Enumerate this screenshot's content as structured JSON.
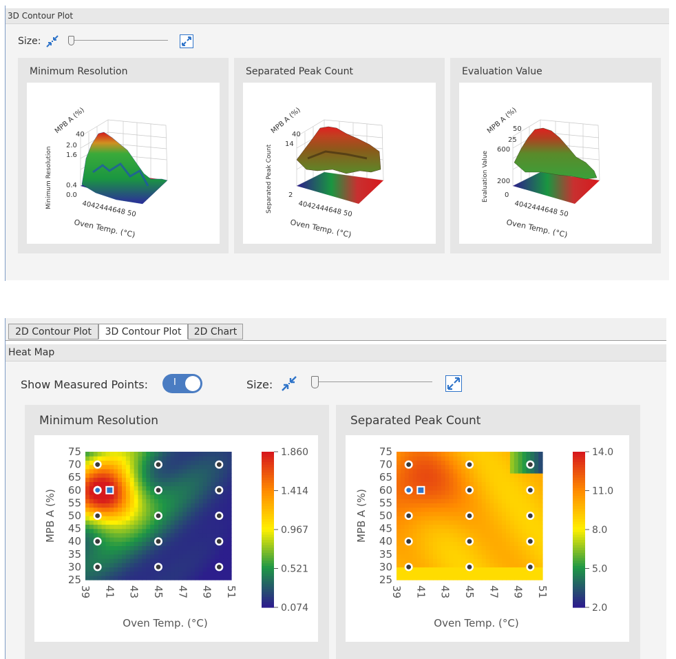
{
  "top": {
    "panel_title": "3D Contour Plot",
    "size_label": "Size:",
    "size_slider_value": 0,
    "cards": [
      {
        "title": "Minimum Resolution",
        "zlabel": "Minimum Resolution",
        "ylabel": "MPB A (%)",
        "xlabel": "Oven Temp. (°C)",
        "y_tick": "40",
        "z_ticks": [
          "2.0",
          "1.6",
          "0.4",
          "0.0"
        ],
        "x_ticks": "4042444648 50"
      },
      {
        "title": "Separated Peak Count",
        "zlabel": "Separated Peak Count",
        "ylabel": "MPB A (%)",
        "xlabel": "Oven Temp. (°C)",
        "y_tick": "40",
        "z_ticks": [
          "14",
          "2"
        ],
        "x_ticks": "4042444648 50"
      },
      {
        "title": "Evaluation Value",
        "zlabel": "Evaluation Value",
        "ylabel": "MPB A (%)",
        "xlabel": "Oven Temp. (°C)",
        "y_ticks": [
          "50",
          "25"
        ],
        "z_ticks": [
          "600",
          "200",
          "0"
        ],
        "x_ticks": "4042444648 50"
      }
    ]
  },
  "tabs": [
    {
      "label": "2D Contour Plot",
      "active": false
    },
    {
      "label": "3D Contour Plot",
      "active": true
    },
    {
      "label": "2D Chart",
      "active": false
    }
  ],
  "bottom": {
    "panel_title": "Heat Map",
    "show_points_label": "Show Measured Points:",
    "show_points_toggle": "I",
    "show_points_on": true,
    "size_label": "Size:",
    "size_slider_value": 0,
    "charts": [
      {
        "title": "Minimum Resolution"
      },
      {
        "title": "Separated Peak Count"
      }
    ]
  },
  "chart_data": [
    {
      "type": "heatmap",
      "title": "Minimum Resolution",
      "xlabel": "Oven Temp. (°C)",
      "ylabel": "MPB A (%)",
      "xlim": [
        39,
        51
      ],
      "ylim": [
        25,
        75
      ],
      "x_ticks": [
        "39",
        "41",
        "43",
        "45",
        "47",
        "49",
        "51"
      ],
      "y_ticks": [
        "75",
        "70",
        "65",
        "60",
        "55",
        "50",
        "45",
        "40",
        "35",
        "30",
        "25"
      ],
      "colorbar_ticks": [
        "1.860",
        "1.414",
        "0.967",
        "0.521",
        "0.074"
      ],
      "colorbar_range": [
        0.074,
        1.86
      ],
      "measured_points": [
        [
          40,
          70
        ],
        [
          45,
          70
        ],
        [
          50,
          70
        ],
        [
          40,
          60
        ],
        [
          45,
          60
        ],
        [
          50,
          60
        ],
        [
          40,
          50
        ],
        [
          45,
          50
        ],
        [
          50,
          50
        ],
        [
          40,
          40
        ],
        [
          45,
          40
        ],
        [
          50,
          40
        ],
        [
          40,
          30
        ],
        [
          45,
          30
        ],
        [
          50,
          30
        ]
      ],
      "selected_point": [
        41,
        60
      ],
      "colors": {
        "max": "#d7191c",
        "high": "#ff7f00",
        "mid": "#ffff00",
        "low": "#1a9641",
        "min": "#2c1e8c"
      }
    },
    {
      "type": "heatmap",
      "title": "Separated Peak Count",
      "xlabel": "Oven Temp. (°C)",
      "ylabel": "MPB A (%)",
      "xlim": [
        39,
        51
      ],
      "ylim": [
        25,
        75
      ],
      "x_ticks": [
        "39",
        "41",
        "43",
        "45",
        "47",
        "49",
        "51"
      ],
      "y_ticks": [
        "75",
        "70",
        "65",
        "60",
        "55",
        "50",
        "45",
        "40",
        "35",
        "30",
        "25"
      ],
      "colorbar_ticks": [
        "14.0",
        "11.0",
        "8.0",
        "5.0",
        "2.0"
      ],
      "colorbar_range": [
        2.0,
        14.0
      ],
      "measured_points": [
        [
          40,
          70
        ],
        [
          45,
          70
        ],
        [
          50,
          70
        ],
        [
          40,
          60
        ],
        [
          45,
          60
        ],
        [
          50,
          60
        ],
        [
          40,
          50
        ],
        [
          45,
          50
        ],
        [
          50,
          50
        ],
        [
          40,
          40
        ],
        [
          45,
          40
        ],
        [
          50,
          40
        ],
        [
          40,
          30
        ],
        [
          45,
          30
        ],
        [
          50,
          30
        ]
      ],
      "selected_point": [
        41,
        60
      ]
    }
  ]
}
